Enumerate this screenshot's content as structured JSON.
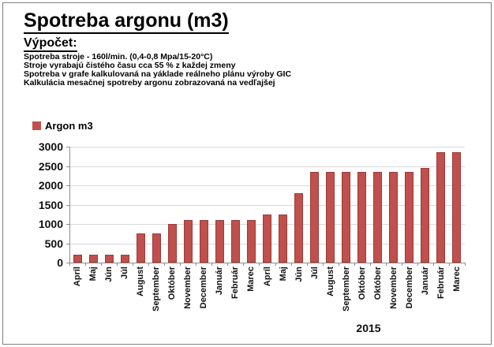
{
  "window": {
    "background": "#ffffff",
    "border_color": "#7f7f7f"
  },
  "header": {
    "title": "Spotreba argonu (m3)",
    "subtitle": "Výpočet:",
    "info_lines": [
      "Spotreba stroje - 160l/min. (0,4-0,8 Mpa/15-20°C)",
      "Stroje vyrabajú čistého času cca 55 % z každej zmeny",
      "Spotreba v grafe kalkulovaná na yáklade reálneho plánu výroby GIC",
      "Kalkulácia mesačnej spotreby argonu zobrazovaná na vedľajšej"
    ]
  },
  "legend": {
    "label": "Argon m3",
    "swatch_color": "#C0504D"
  },
  "chart_data": {
    "type": "bar",
    "title": "",
    "xlabel": "",
    "ylabel": "",
    "series_name": "Argon m3",
    "categories": [
      "Apríl",
      "Maj",
      "Jún",
      "Júl",
      "August",
      "September",
      "Október",
      "November",
      "December",
      "Január",
      "Február",
      "Marec",
      "Apríl",
      "Maj",
      "Jún",
      "Júl",
      "August",
      "September",
      "Október",
      "Október",
      "November",
      "December",
      "Január",
      "Február",
      "Marec"
    ],
    "values": [
      200,
      200,
      200,
      200,
      750,
      750,
      1000,
      1100,
      1100,
      1100,
      1100,
      1100,
      1250,
      1250,
      1800,
      2350,
      2350,
      2350,
      2350,
      2350,
      2350,
      2350,
      2450,
      2850,
      2850
    ],
    "ylim": [
      0,
      3000
    ],
    "ytick_step": 500,
    "grid": true,
    "legend_position": "top-left",
    "year_label": "2015",
    "bar_color": "#C0504D",
    "bar_border_color": "#9C3A37",
    "gridline_color": "#D9D9D9",
    "axis_color": "#8C8C8C"
  }
}
